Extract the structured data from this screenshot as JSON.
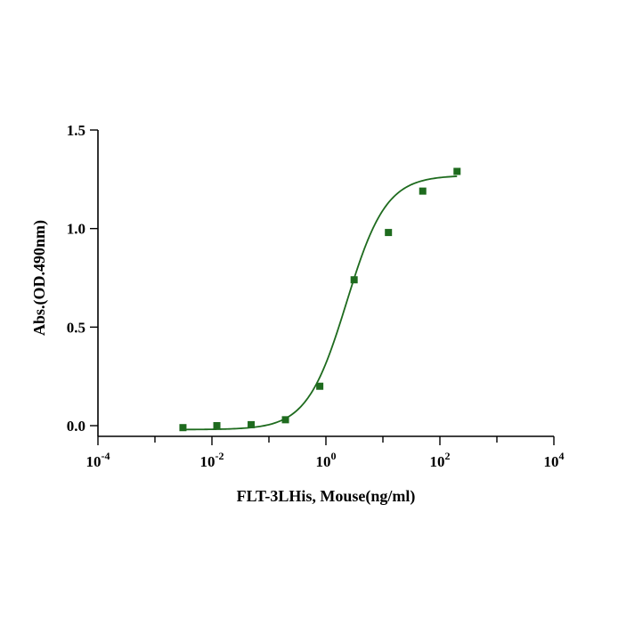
{
  "chart_data": {
    "type": "scatter",
    "xlabel": "FLT-3LHis, Mouse(ng/ml)",
    "ylabel": "Abs.(OD.490nm)",
    "x_scale": "log",
    "xlim": [
      0.0001,
      10000
    ],
    "ylim": [
      0,
      1.5
    ],
    "x_ticks": [
      {
        "value": 0.0001,
        "base": "10",
        "exp": "-4"
      },
      {
        "value": 0.01,
        "base": "10",
        "exp": "-2"
      },
      {
        "value": 1,
        "base": "10",
        "exp": "0"
      },
      {
        "value": 100,
        "base": "10",
        "exp": "2"
      },
      {
        "value": 10000,
        "base": "10",
        "exp": "4"
      }
    ],
    "y_ticks": [
      {
        "value": 0,
        "label": "0.0"
      },
      {
        "value": 0.5,
        "label": "0.5"
      },
      {
        "value": 1.0,
        "label": "1.0"
      },
      {
        "value": 1.5,
        "label": "1.5"
      }
    ],
    "grid": false,
    "series": [
      {
        "color": "#1e6b1e",
        "marker": "square",
        "points": [
          {
            "x": 0.0031,
            "y": -0.01
          },
          {
            "x": 0.0122,
            "y": 0.0
          },
          {
            "x": 0.0488,
            "y": 0.005
          },
          {
            "x": 0.195,
            "y": 0.03
          },
          {
            "x": 0.781,
            "y": 0.2
          },
          {
            "x": 3.125,
            "y": 0.74
          },
          {
            "x": 12.5,
            "y": 0.98
          },
          {
            "x": 50,
            "y": 1.19
          },
          {
            "x": 200,
            "y": 1.29
          }
        ],
        "fit": {
          "model": "4PL",
          "bottom": -0.02,
          "top": 1.27,
          "ec50": 2.3,
          "hill": 1.25,
          "x_range": [
            0.0031,
            200
          ]
        }
      }
    ]
  }
}
